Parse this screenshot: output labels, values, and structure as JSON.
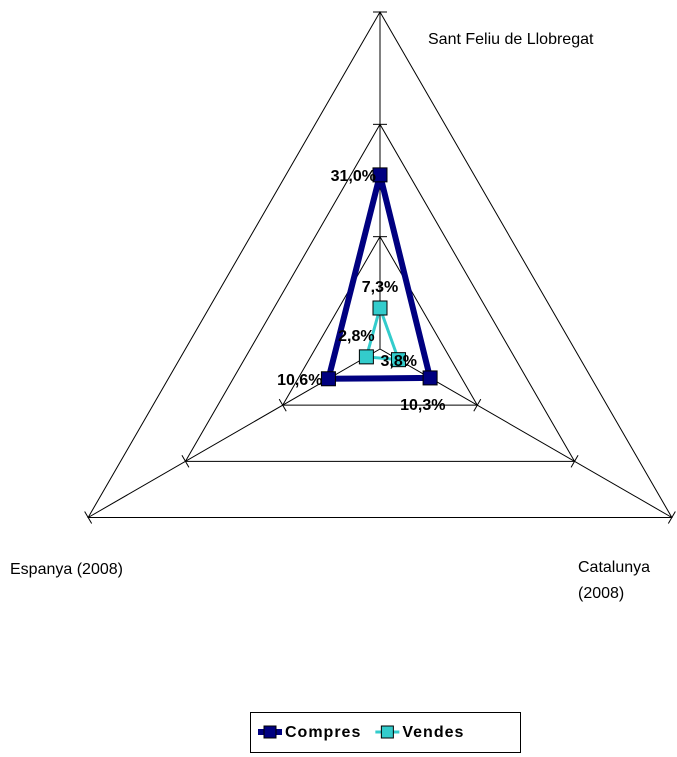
{
  "chart_data": {
    "type": "radar",
    "categories": [
      "Sant Feliu de Llobregat",
      "Catalunya (2008)",
      "Espanya (2008)"
    ],
    "series": [
      {
        "name": "Compres",
        "color": "#000080",
        "values": [
          31.0,
          10.3,
          10.6
        ],
        "value_labels": [
          "31,0%",
          "10,3%",
          "10,6%"
        ]
      },
      {
        "name": "Vendes",
        "color": "#33cccc",
        "values": [
          7.3,
          3.8,
          2.8
        ],
        "value_labels": [
          "7,3%",
          "3,8%",
          "2,8%"
        ]
      }
    ],
    "ylim": [
      0,
      60
    ],
    "yticks": [
      0,
      20,
      40,
      60
    ],
    "grid": true,
    "legend": "bottom"
  }
}
